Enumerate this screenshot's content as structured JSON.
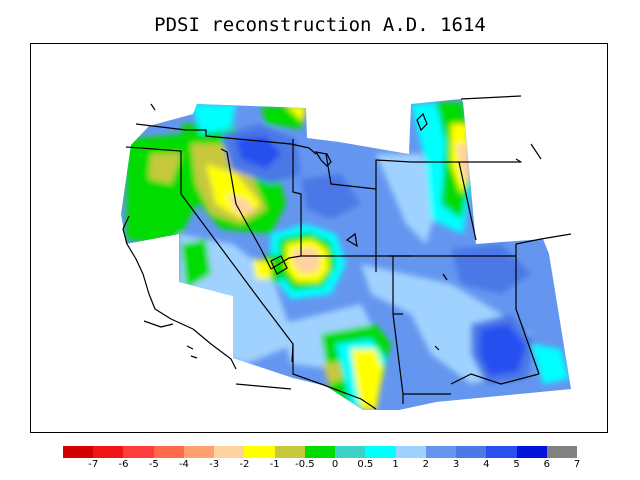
{
  "title": "PDSI reconstruction A.D. 1614",
  "legend": {
    "colors": [
      "#d00000",
      "#f01414",
      "#ff3c3c",
      "#ff6a4a",
      "#ffa070",
      "#ffd2a0",
      "#ffff00",
      "#c8c83c",
      "#00dc00",
      "#3cd2c8",
      "#00ffff",
      "#a0d2ff",
      "#6496f0",
      "#4b78e6",
      "#2850f0",
      "#0014dc",
      "#828282"
    ],
    "ticks": [
      "-7",
      "-6",
      "-5",
      "-4",
      "-3",
      "-2",
      "-1",
      "-0.5",
      "0",
      "0.5",
      "1",
      "2",
      "3",
      "4",
      "5",
      "6",
      "7"
    ]
  }
}
